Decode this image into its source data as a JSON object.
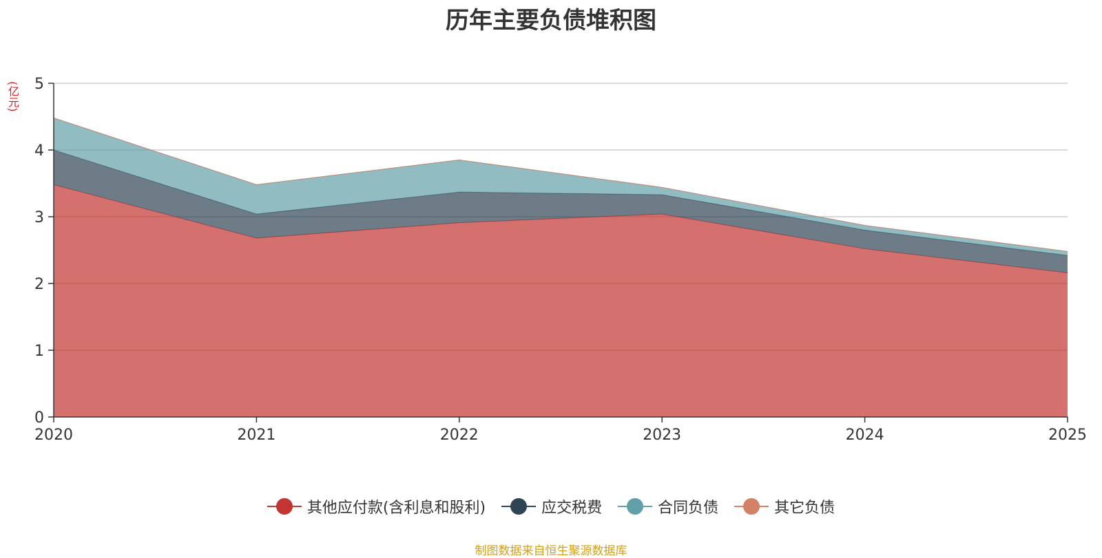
{
  "chart_data": {
    "type": "area",
    "stacked": true,
    "title": "历年主要负债堆积图",
    "ylabel": "(亿元)",
    "xlabel": "",
    "categories": [
      "2020",
      "2021",
      "2022",
      "2023",
      "2024",
      "2025"
    ],
    "ylim": [
      0,
      5
    ],
    "yticks": [
      "0",
      "1",
      "2",
      "3",
      "4",
      "5"
    ],
    "series": [
      {
        "name": "其他应付款(含利息和股利)",
        "color": "#c23531",
        "values": [
          3.48,
          2.68,
          2.91,
          3.04,
          2.52,
          2.16
        ]
      },
      {
        "name": "应交税费",
        "color": "#2f4554",
        "values": [
          0.52,
          0.36,
          0.46,
          0.29,
          0.28,
          0.26
        ]
      },
      {
        "name": "合同负债",
        "color": "#61a0a8",
        "values": [
          0.48,
          0.44,
          0.48,
          0.11,
          0.07,
          0.06
        ]
      },
      {
        "name": "其它负债",
        "color": "#d48265",
        "values": [
          0.0,
          0.0,
          0.0,
          0.0,
          0.0,
          0.0
        ]
      }
    ],
    "legend_position": "bottom",
    "grid": true
  },
  "footer": {
    "source": "制图数据来自恒生聚源数据库"
  }
}
